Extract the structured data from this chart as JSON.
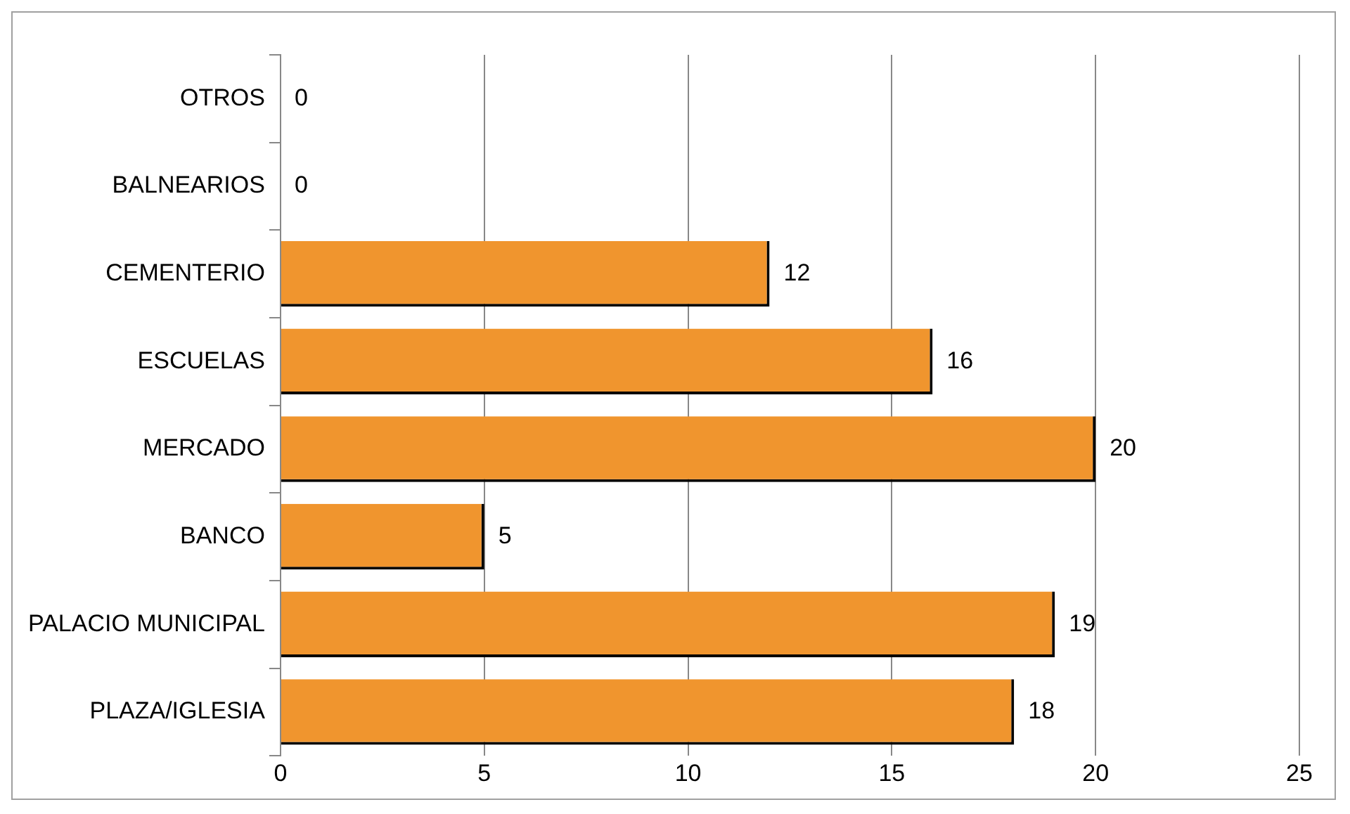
{
  "chart_data": {
    "type": "bar",
    "orientation": "horizontal",
    "categories": [
      "OTROS",
      "BALNEARIOS",
      "CEMENTERIO",
      "ESCUELAS",
      "MERCADO",
      "BANCO",
      "PALACIO MUNICIPAL",
      "PLAZA/IGLESIA"
    ],
    "values": [
      0,
      0,
      12,
      16,
      20,
      5,
      19,
      18
    ],
    "color": "#f0952e",
    "xlim": [
      0,
      25
    ],
    "xticks": [
      0,
      5,
      10,
      15,
      20,
      25
    ],
    "grid": "x",
    "data_labels": true,
    "legend": false
  }
}
